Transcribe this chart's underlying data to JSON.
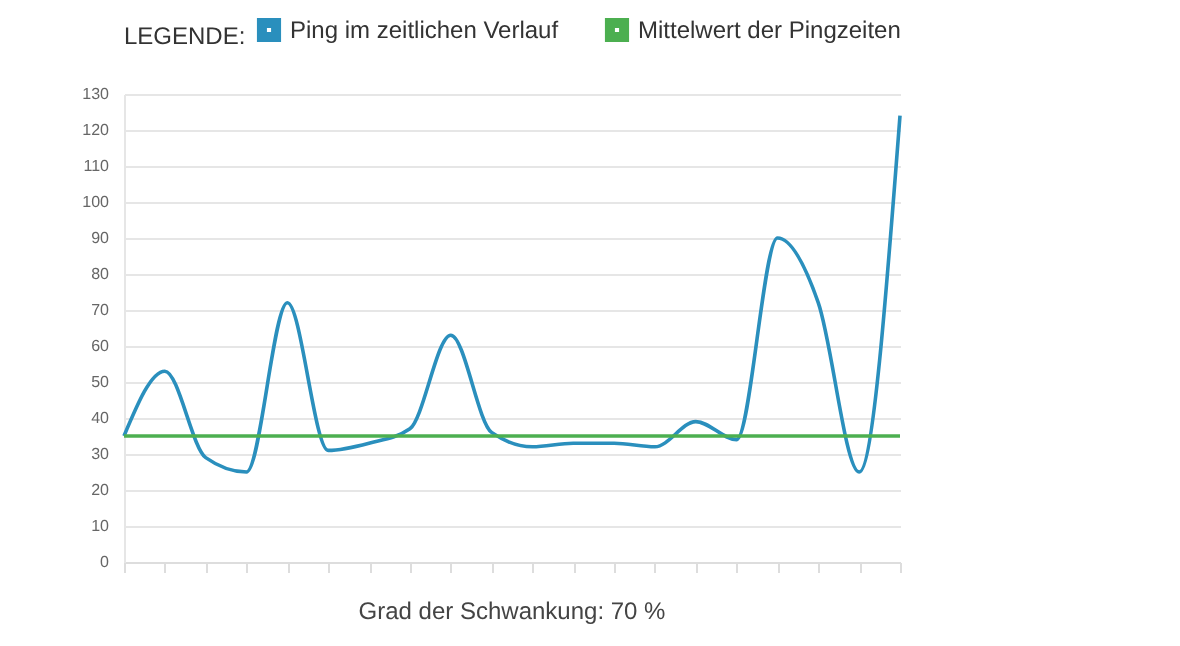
{
  "chart_data": {
    "type": "line",
    "legend_title": "LEGENDE:",
    "categories": [
      null,
      null,
      null,
      null,
      null,
      null,
      null,
      null,
      null,
      null,
      null,
      null,
      null,
      null,
      null,
      null,
      null,
      null,
      null,
      null
    ],
    "series": [
      {
        "name": "Ping im zeitlichen Verlauf",
        "color": "#2a8fbd",
        "values": [
          35,
          53,
          29,
          25,
          72,
          31,
          33,
          37,
          63,
          36,
          32,
          33,
          33,
          32,
          39,
          34,
          90,
          72,
          25,
          124
        ]
      },
      {
        "name": "Mittelwert der Pingzeiten",
        "color": "#4caf50",
        "values": [
          35,
          35,
          35,
          35,
          35,
          35,
          35,
          35,
          35,
          35,
          35,
          35,
          35,
          35,
          35,
          35,
          35,
          35,
          35,
          35
        ]
      }
    ],
    "ylim": [
      0,
      130
    ],
    "yticks": [
      0,
      10,
      20,
      30,
      40,
      50,
      60,
      70,
      80,
      90,
      100,
      110,
      120,
      130
    ],
    "grid": "y",
    "legend": "top",
    "tick_labels": "y",
    "marker": "none",
    "annotations": [
      "Grad der Schwankung: 70 %"
    ]
  }
}
